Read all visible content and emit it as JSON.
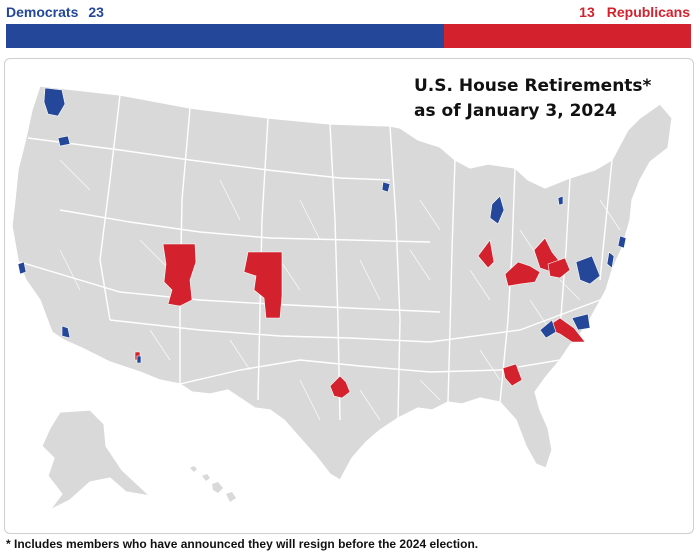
{
  "header": {
    "democrats_label": "Democrats",
    "democrats_count": "23",
    "republicans_label": "Republicans",
    "republicans_count": "13"
  },
  "party_bar": {
    "democrats": 23,
    "republicans": 13
  },
  "map": {
    "title_line1": "U.S. House Retirements*",
    "title_line2": "as of January 3, 2024",
    "colors": {
      "democrat": "#24479a",
      "republican": "#d3222e",
      "no_retirement": "#d9d9d9",
      "border": "#ffffff"
    }
  },
  "footnote": "* Includes members who have announced they will resign before the 2024 election."
}
